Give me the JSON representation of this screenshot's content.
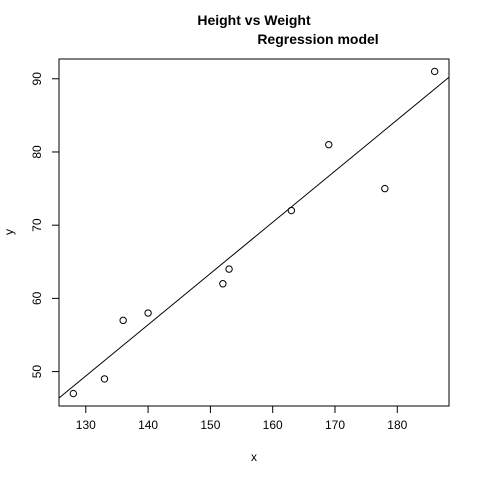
{
  "chart_data": {
    "type": "scatter",
    "title": "Height vs Weight",
    "subtitle": "Regression model",
    "xlabel": "x",
    "ylabel": "y",
    "xlim": [
      125.7,
      188.3
    ],
    "ylim": [
      45.3,
      92.7
    ],
    "x_ticks": [
      130,
      140,
      150,
      160,
      170,
      180
    ],
    "y_ticks": [
      50,
      60,
      70,
      80,
      90
    ],
    "grid": false,
    "points": [
      {
        "x": 128,
        "y": 47
      },
      {
        "x": 133,
        "y": 49
      },
      {
        "x": 136,
        "y": 57
      },
      {
        "x": 140,
        "y": 58
      },
      {
        "x": 152,
        "y": 62
      },
      {
        "x": 153,
        "y": 64
      },
      {
        "x": 163,
        "y": 72
      },
      {
        "x": 169,
        "y": 81
      },
      {
        "x": 178,
        "y": 75
      },
      {
        "x": 186,
        "y": 91
      }
    ],
    "regression_line": {
      "slope": 0.7,
      "intercept": -41.6
    }
  }
}
